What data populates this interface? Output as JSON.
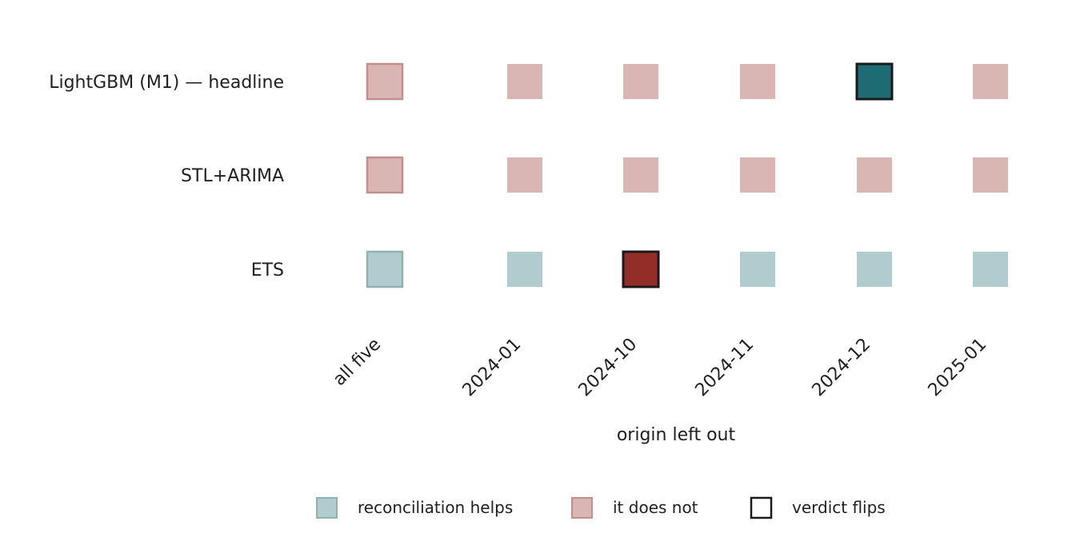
{
  "chart_data": {
    "type": "heatmap",
    "xlabel": "origin left out",
    "rows": [
      "LightGBM (M1) — headline",
      "STL+ARIMA",
      "ETS"
    ],
    "columns": [
      "all five",
      "2024-01",
      "2024-10",
      "2024-11",
      "2024-12",
      "2025-01"
    ],
    "cells": [
      [
        "does_not",
        "does_not",
        "does_not",
        "does_not",
        "helps",
        "does_not"
      ],
      [
        "does_not",
        "does_not",
        "does_not",
        "does_not",
        "does_not",
        "does_not"
      ],
      [
        "helps",
        "helps",
        "does_not",
        "helps",
        "helps",
        "helps"
      ]
    ],
    "flips": [
      [
        false,
        false,
        false,
        false,
        true,
        false
      ],
      [
        false,
        false,
        false,
        false,
        false,
        false
      ],
      [
        false,
        false,
        true,
        false,
        false,
        false
      ]
    ],
    "legend": [
      {
        "key": "helps",
        "label": "reconciliation helps"
      },
      {
        "key": "does_not",
        "label": "it does not"
      },
      {
        "key": "flip",
        "label": "verdict flips"
      }
    ],
    "colors": {
      "helps_light": "#b1cccf",
      "helps_dark": "#1d6b73",
      "does_not_light": "#d9b6b3",
      "does_not_dark": "#922d27",
      "baseline_border_helps": "#8fb1b4",
      "baseline_border_does_not": "#c48f8b",
      "flip_border": "#1a1a1a"
    }
  }
}
